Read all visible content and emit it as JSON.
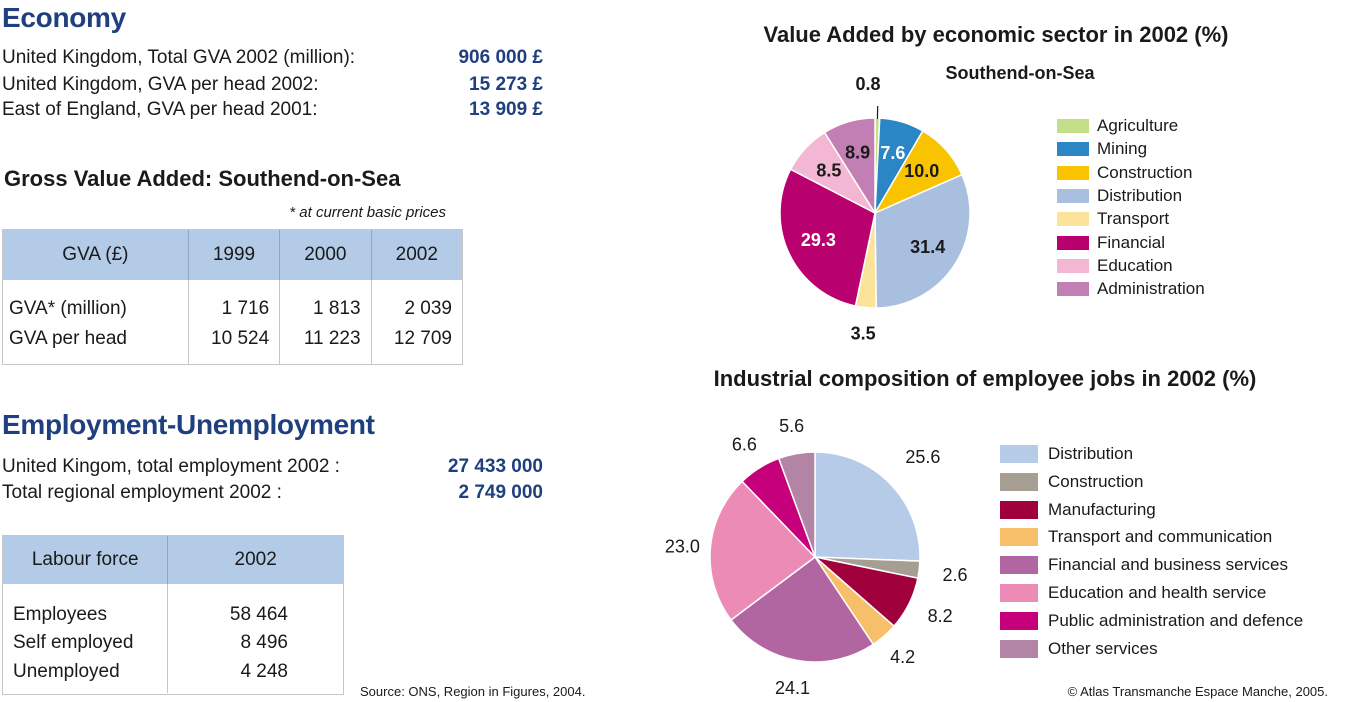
{
  "economy": {
    "heading": "Economy",
    "stats": [
      {
        "label": "United Kingdom, Total GVA 2002 (million):",
        "value": "906 000 £"
      },
      {
        "label": "United Kingdom, GVA per head 2002:",
        "value": "15 273 £"
      },
      {
        "label": "East of England, GVA per head 2001:",
        "value": "13 909 £"
      }
    ]
  },
  "gva": {
    "heading": "Gross Value Added: Southend-on-Sea",
    "note": "* at current basic prices",
    "headers": [
      "GVA (£)",
      "1999",
      "2000",
      "2002"
    ],
    "rows": [
      [
        "GVA* (million)",
        "1 716",
        "1 813",
        "2 039"
      ],
      [
        "GVA per head",
        "10 524",
        "11 223",
        "12 709"
      ]
    ]
  },
  "employment": {
    "heading": "Employment-Unemployment",
    "stats": [
      {
        "label": "United Kingom, total employment 2002 :",
        "value": "27 433 000"
      },
      {
        "label": "Total regional employment 2002 :",
        "value": "2 749 000"
      }
    ]
  },
  "labour": {
    "headers": [
      "Labour force",
      "2002"
    ],
    "rows": [
      [
        "Employees",
        "58 464"
      ],
      [
        "Self employed",
        "8 496"
      ],
      [
        "Unemployed",
        "4 248"
      ]
    ]
  },
  "footer": {
    "source": "Source: ONS, Region in Figures, 2004.",
    "copyright": "© Atlas Transmanche Espace Manche, 2005."
  },
  "chart_data": [
    {
      "type": "pie",
      "title": "Value Added by economic sector in 2002 (%)",
      "subtitle": "Southend-on-Sea",
      "legend_position": "right",
      "slices": [
        {
          "label": "Agriculture",
          "value": 0.8,
          "value_label": "0.8",
          "color": "#c3df8a"
        },
        {
          "label": "Mining",
          "value": 7.6,
          "value_label": "7.6",
          "color": "#2b86c6"
        },
        {
          "label": "Construction",
          "value": 10.0,
          "value_label": "10.0",
          "color": "#f9c300"
        },
        {
          "label": "Distribution",
          "value": 31.4,
          "value_label": "31.4",
          "color": "#a9bfe0"
        },
        {
          "label": "Transport",
          "value": 3.5,
          "value_label": "3.5",
          "color": "#fbe49a"
        },
        {
          "label": "Financial",
          "value": 29.3,
          "value_label": "29.3",
          "color": "#b8006e"
        },
        {
          "label": "Education",
          "value": 8.5,
          "value_label": "8.5",
          "color": "#f3b6d3"
        },
        {
          "label": "Administration",
          "value": 8.9,
          "value_label": "8.9",
          "color": "#c27fb4"
        }
      ]
    },
    {
      "type": "pie",
      "title": "Industrial composition of employee jobs in 2002 (%)",
      "legend_position": "right",
      "slices": [
        {
          "label": "Distribution",
          "value": 25.6,
          "value_label": "25.6",
          "color": "#b5cbe7"
        },
        {
          "label": "Construction",
          "value": 2.6,
          "value_label": "2.6",
          "color": "#a69e92"
        },
        {
          "label": "Manufacturing",
          "value": 8.2,
          "value_label": "8.2",
          "color": "#a0003c"
        },
        {
          "label": "Transport and communication",
          "value": 4.2,
          "value_label": "4.2",
          "color": "#f8bf6a"
        },
        {
          "label": "Financial and business services",
          "value": 24.1,
          "value_label": "24.1",
          "color": "#b166a2"
        },
        {
          "label": "Education and health service",
          "value": 23.0,
          "value_label": "23.0",
          "color": "#ec8bb6"
        },
        {
          "label": "Public administration and defence",
          "value": 6.6,
          "value_label": "6.6",
          "color": "#c5007a"
        },
        {
          "label": "Other services",
          "value": 5.6,
          "value_label": "5.6",
          "color": "#b285a6"
        }
      ]
    }
  ]
}
